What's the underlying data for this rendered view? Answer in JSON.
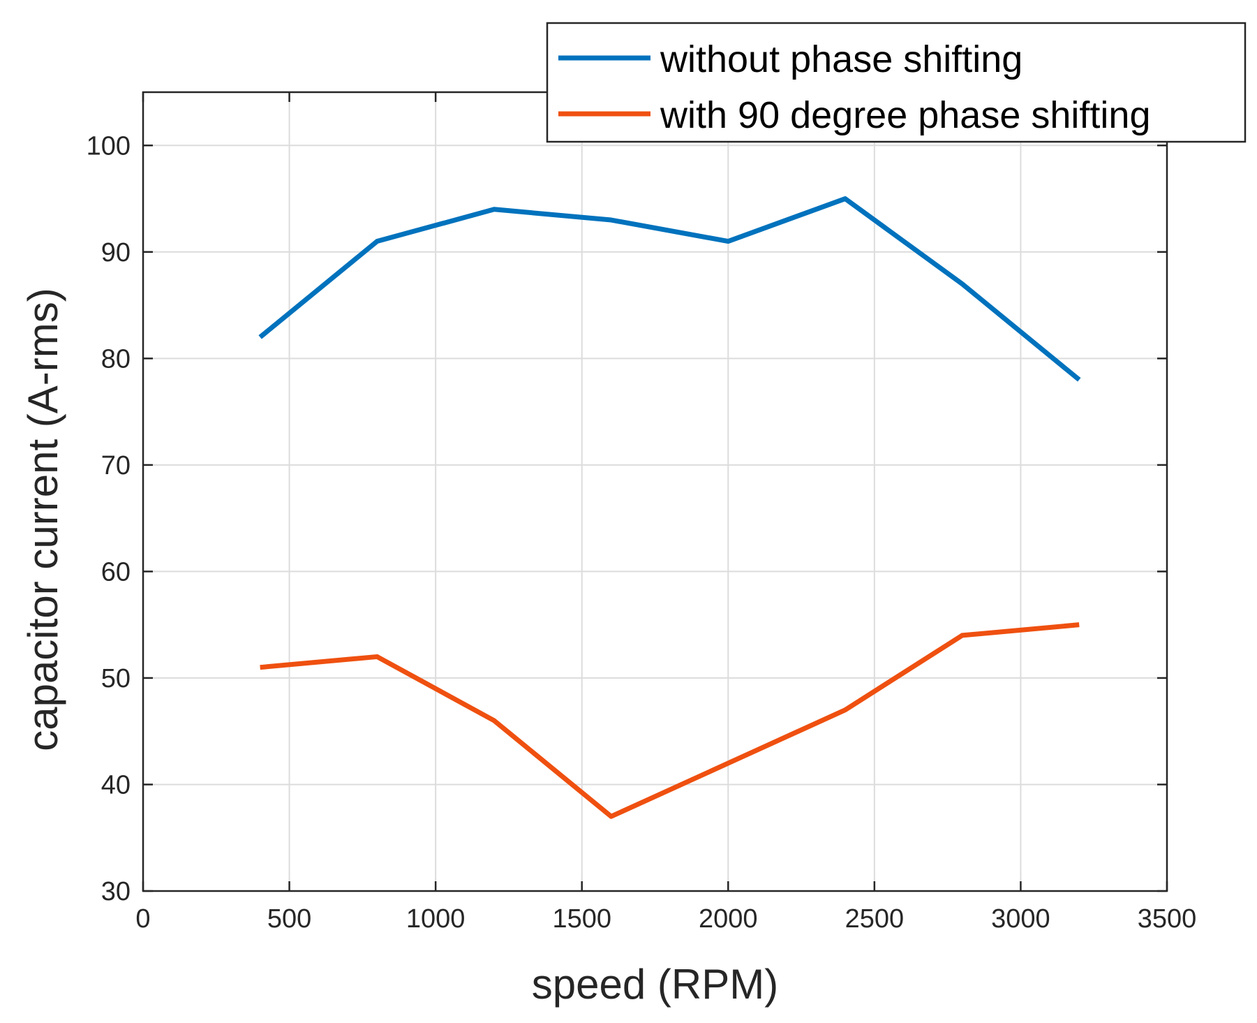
{
  "chart_data": {
    "type": "line",
    "title": "",
    "xlabel": "speed (RPM)",
    "ylabel": "capacitor current (A-rms)",
    "xlim": [
      0,
      3500
    ],
    "ylim": [
      30,
      105
    ],
    "xticks": [
      0,
      500,
      1000,
      1500,
      2000,
      2500,
      3000,
      3500
    ],
    "yticks": [
      30,
      40,
      50,
      60,
      70,
      80,
      90,
      100
    ],
    "grid": true,
    "legend_position": "top-right",
    "x": [
      400,
      800,
      1200,
      1600,
      2000,
      2400,
      2800,
      3200
    ],
    "series": [
      {
        "name": "without phase shifting",
        "color": "#0072BD",
        "values": [
          82,
          91,
          94,
          93,
          91,
          95,
          87,
          78
        ]
      },
      {
        "name": "with 90 degree phase shifting",
        "color": "#EF5010",
        "values": [
          51,
          52,
          46,
          37,
          42,
          47,
          54,
          55
        ]
      }
    ]
  }
}
